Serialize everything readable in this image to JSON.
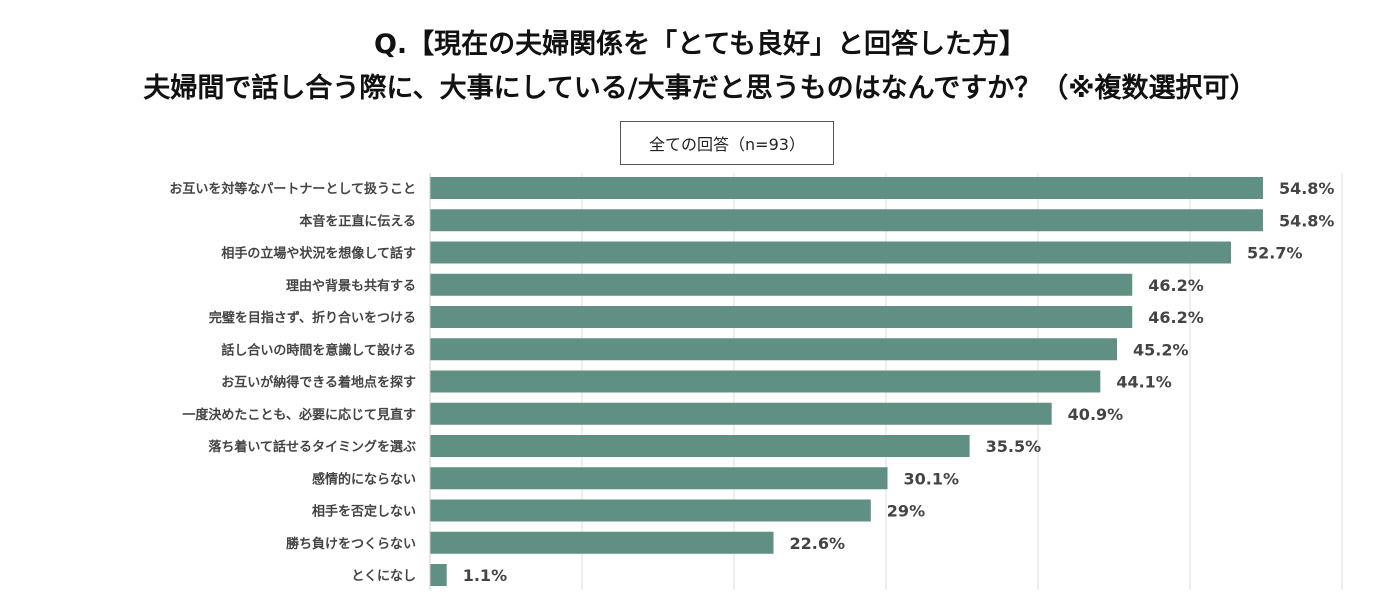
{
  "chart_data": {
    "type": "bar",
    "orientation": "horizontal",
    "title": "Q.【現在の夫婦関係を「とても良好」と回答した方】",
    "subtitle": "夫婦間で話し合う際に、大事にしている/大事だと思うものはなんですか？（※複数選択可）",
    "legend": "全ての回答（n=93）",
    "legend_placement": "top-center",
    "categories": [
      "お互いを対等なパートナーとして扱うこと",
      "本音を正直に伝える",
      "相手の立場や状況を想像して話す",
      "理由や背景も共有する",
      "完璧を目指さず、折り合いをつける",
      "話し合いの時間を意識して設ける",
      "お互いが納得できる着地点を探す",
      "一度決めたことも、必要に応じて見直す",
      "落ち着いて話せるタイミングを選ぶ",
      "感情的にならない",
      "相手を否定しない",
      "勝ち負けをつくらない",
      "とくになし"
    ],
    "values": [
      54.8,
      54.8,
      52.7,
      46.2,
      46.2,
      45.2,
      44.1,
      40.9,
      35.5,
      30.1,
      29,
      22.6,
      1.1
    ],
    "value_labels": [
      "54.8%",
      "54.8%",
      "52.7%",
      "46.2%",
      "46.2%",
      "45.2%",
      "44.1%",
      "40.9%",
      "35.5%",
      "30.1%",
      "29%",
      "22.6%",
      "1.1%"
    ],
    "xlim": [
      0,
      60
    ],
    "grid": true,
    "bar_color": "#5f9083"
  }
}
